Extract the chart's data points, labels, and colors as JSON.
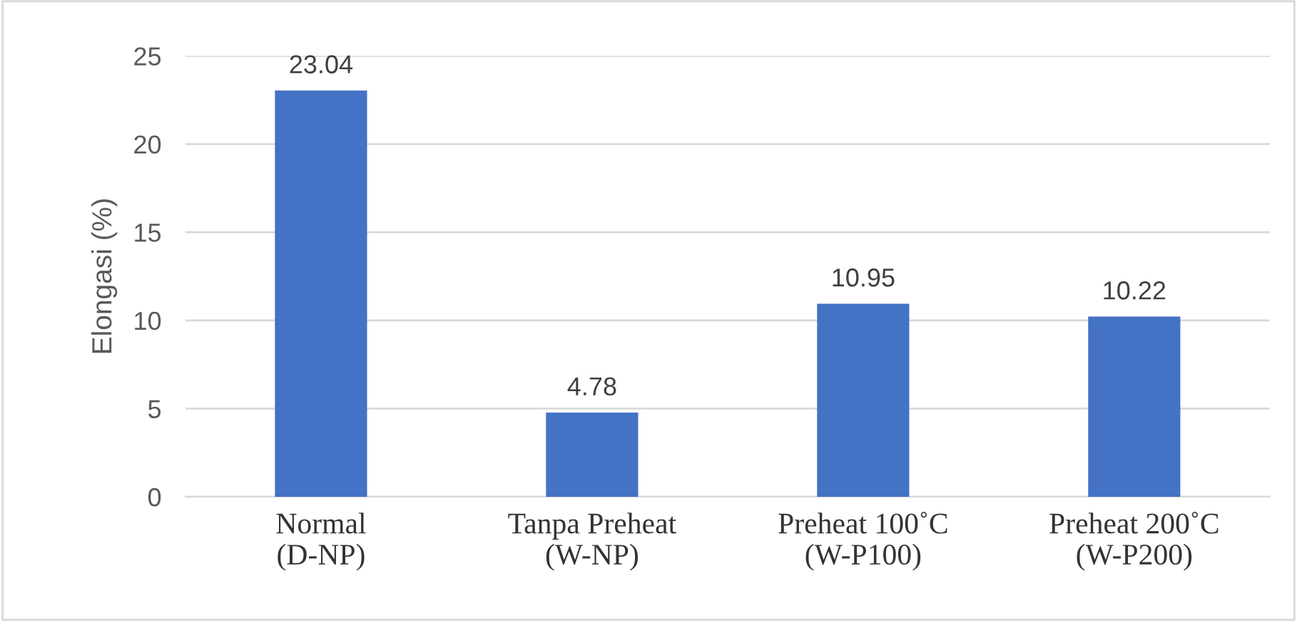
{
  "chart_data": {
    "type": "bar",
    "ylabel": "Elongasi (%)",
    "categories": [
      "Normal\n(D-NP)",
      "Tanpa Preheat\n(W-NP)",
      "Preheat 100˚C\n(W-P100)",
      "Preheat 200˚C\n(W-P200)"
    ],
    "values": [
      23.04,
      4.78,
      10.95,
      10.22
    ],
    "color": "#4472c4",
    "ylim": [
      0,
      25
    ],
    "yticks": [
      0,
      5,
      10,
      15,
      20,
      25
    ],
    "grid": "y",
    "data_labels": true
  }
}
